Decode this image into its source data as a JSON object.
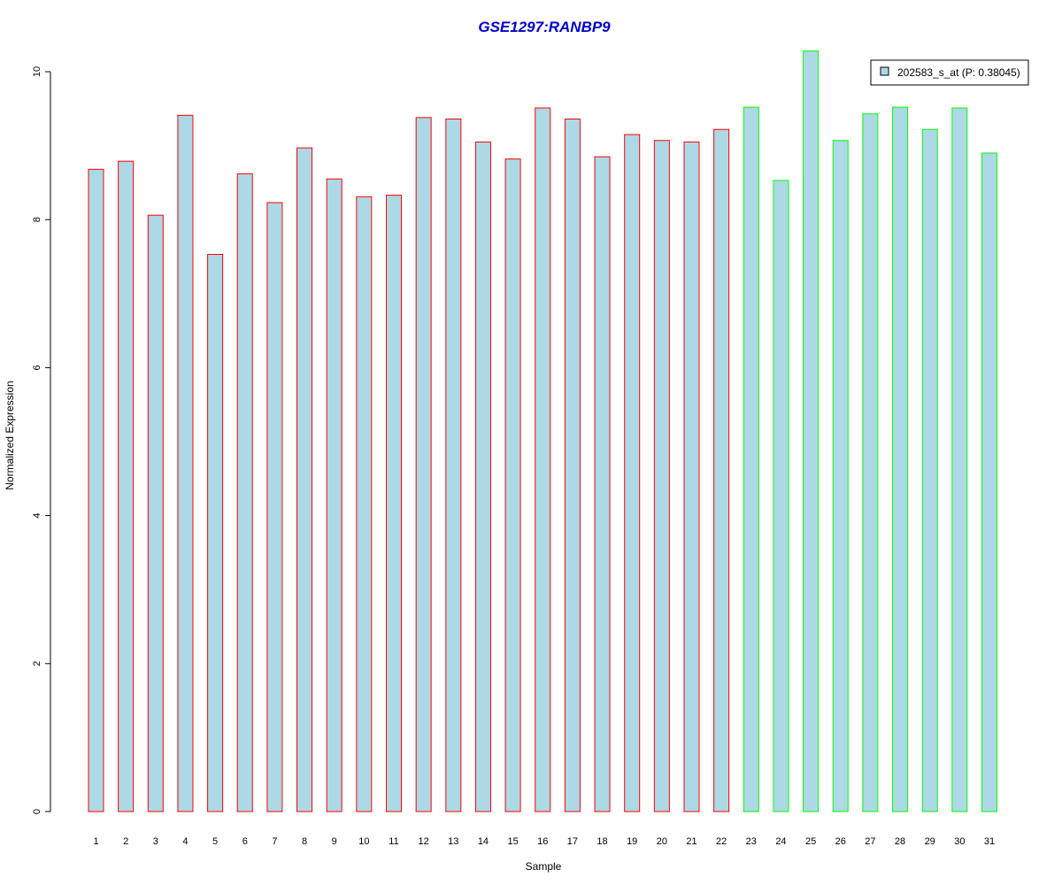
{
  "chart_data": {
    "type": "bar",
    "title": "GSE1297:RANBP9",
    "xlabel": "Sample",
    "ylabel": "Normalized Expression",
    "ylim": [
      0,
      10.3
    ],
    "yticks": [
      0,
      2,
      4,
      6,
      8,
      10
    ],
    "grid": false,
    "legend_position": "top-right",
    "categories": [
      "1",
      "2",
      "3",
      "4",
      "5",
      "6",
      "7",
      "8",
      "9",
      "10",
      "11",
      "12",
      "13",
      "14",
      "15",
      "16",
      "17",
      "18",
      "19",
      "20",
      "21",
      "22",
      "23",
      "24",
      "25",
      "26",
      "27",
      "28",
      "29",
      "30",
      "31"
    ],
    "series": [
      {
        "name": "202583_s_at (P: 0.38045)",
        "values": [
          8.68,
          8.79,
          8.06,
          9.41,
          7.53,
          8.62,
          8.23,
          8.97,
          8.55,
          8.31,
          8.33,
          9.38,
          9.36,
          9.05,
          8.82,
          9.51,
          9.36,
          8.85,
          9.15,
          9.07,
          9.05,
          9.22,
          9.52,
          8.53,
          10.28,
          9.07,
          9.43,
          9.52,
          9.22,
          9.51,
          8.9
        ]
      }
    ],
    "groups": [
      {
        "samples": [
          1,
          22
        ],
        "border_color": "#ff0000"
      },
      {
        "samples": [
          23,
          31
        ],
        "border_color": "#00ff00"
      }
    ],
    "colors": {
      "bar_fill": "#add8e6",
      "title": "#0000cd",
      "axis": "#000000",
      "legend_border": "#000000"
    }
  }
}
